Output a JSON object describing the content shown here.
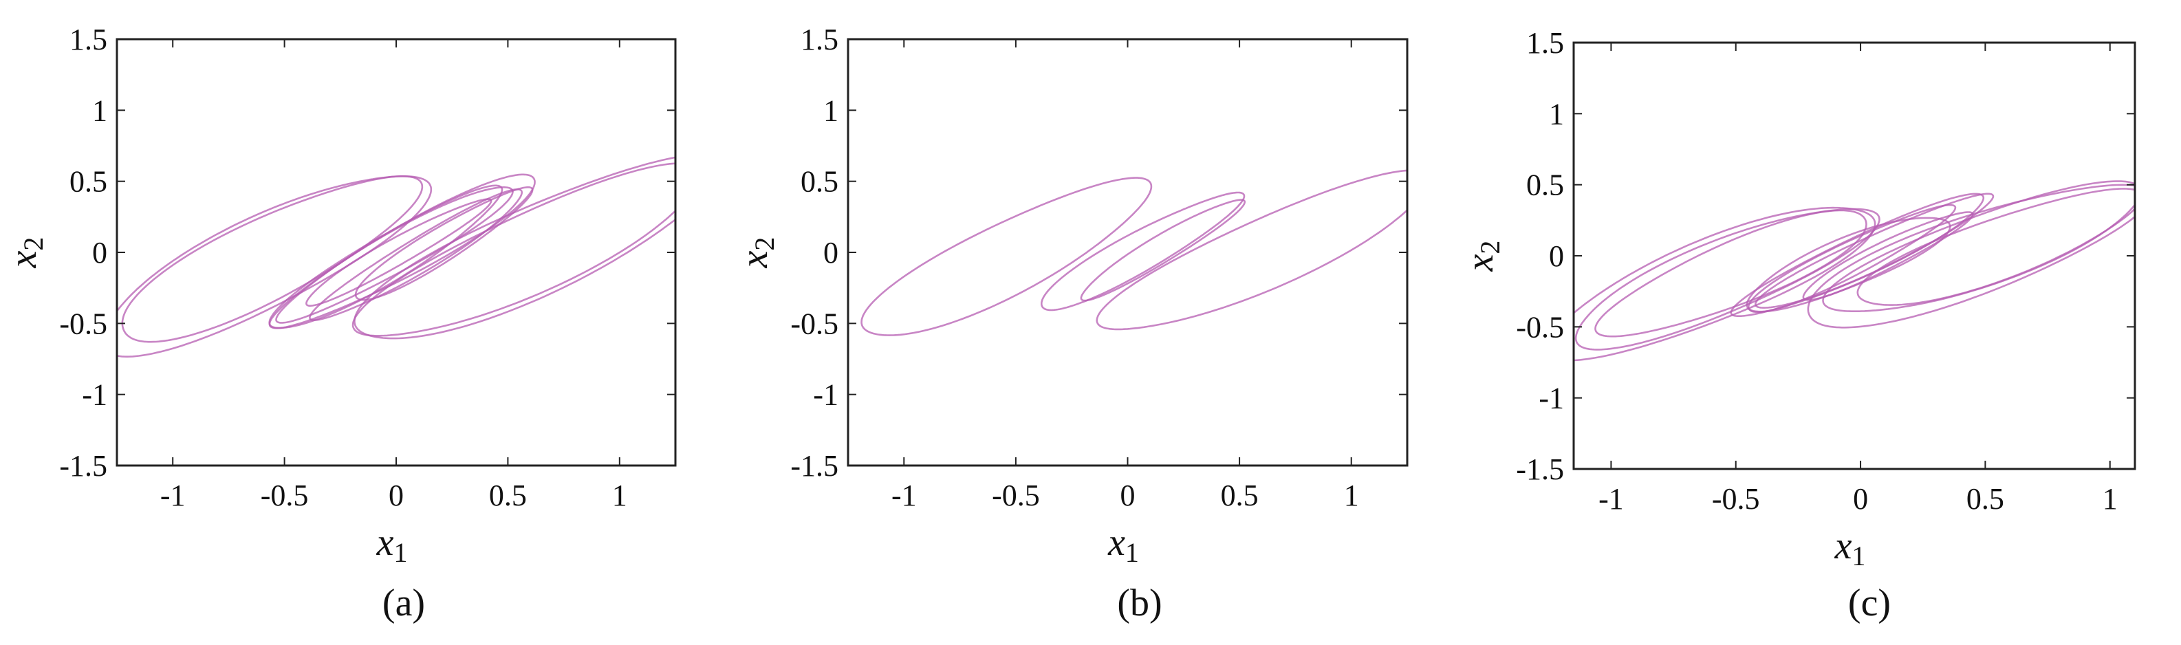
{
  "figure": {
    "colors": {
      "trajectory": "#b65cb1",
      "frame": "#222222"
    }
  },
  "chart_data": [
    {
      "type": "line",
      "caption": "(a)",
      "xlabel": "x1",
      "ylabel": "x2",
      "xlim": [
        -1.25,
        1.25
      ],
      "ylim": [
        -1.5,
        1.5
      ],
      "xticks": [
        "-1",
        "-0.5",
        "0",
        "0.5",
        "1"
      ],
      "yticks": [
        "1.5",
        "1",
        "0.5",
        "0",
        "-0.5",
        "-1",
        "-1.5"
      ],
      "grid": false,
      "series": [
        {
          "loops": [
            {
              "cx": 0.6,
              "cy": 0.0,
              "ang": 37,
              "a": 0.95,
              "b": 0.25,
              "r": 1.0
            },
            {
              "cx": 0.63,
              "cy": 0.02,
              "ang": 37,
              "a": 0.98,
              "b": 0.27,
              "r": 1.03
            },
            {
              "cx": -0.58,
              "cy": -0.05,
              "ang": 40,
              "a": 0.85,
              "b": 0.25,
              "r": 1.0
            },
            {
              "cx": -0.6,
              "cy": -0.08,
              "ang": 40,
              "a": 0.9,
              "b": 0.27,
              "r": 1.03
            },
            {
              "cx": 0.0,
              "cy": 0.0,
              "ang": 42,
              "a": 0.7,
              "b": 0.12,
              "r": 1.0
            },
            {
              "cx": 0.05,
              "cy": 0.02,
              "ang": 42,
              "a": 0.75,
              "b": 0.14,
              "r": 1.05
            },
            {
              "cx": 0.1,
              "cy": -0.02,
              "ang": 44,
              "a": 0.65,
              "b": 0.1,
              "r": 1.0
            },
            {
              "cx": -0.05,
              "cy": -0.05,
              "ang": 44,
              "a": 0.68,
              "b": 0.13,
              "r": 1.04
            },
            {
              "cx": 0.2,
              "cy": 0.05,
              "ang": 45,
              "a": 0.55,
              "b": 0.1,
              "r": 1.0
            },
            {
              "cx": 0.0,
              "cy": 0.0,
              "ang": 42,
              "a": 0.55,
              "b": 0.08,
              "r": 1.0
            }
          ]
        }
      ]
    },
    {
      "type": "line",
      "caption": "(b)",
      "xlabel": "x1",
      "ylabel": "x2",
      "xlim": [
        -1.25,
        1.25
      ],
      "ylim": [
        -1.5,
        1.5
      ],
      "xticks": [
        "-1",
        "-0.5",
        "0",
        "0.5",
        "1"
      ],
      "yticks": [
        "1.5",
        "1",
        "0.5",
        "0",
        "-0.5",
        "-1",
        "-1.5"
      ],
      "grid": false,
      "series": [
        {
          "loops": [
            {
              "cx": 0.62,
              "cy": 0.0,
              "ang": 36,
              "a": 0.9,
              "b": 0.22,
              "r": 1.0
            },
            {
              "cx": -0.55,
              "cy": -0.05,
              "ang": 40,
              "a": 0.82,
              "b": 0.22,
              "r": 1.0
            },
            {
              "cx": 0.05,
              "cy": 0.0,
              "ang": 42,
              "a": 0.6,
              "b": 0.12,
              "r": 1.0
            },
            {
              "cx": 0.15,
              "cy": 0.02,
              "ang": 44,
              "a": 0.5,
              "b": 0.08,
              "r": 1.0
            }
          ]
        }
      ]
    },
    {
      "type": "line",
      "caption": "(c)",
      "xlabel": "x1",
      "ylabel": "x2",
      "xlim": [
        -1.15,
        1.1
      ],
      "ylim": [
        -1.5,
        1.5
      ],
      "xticks": [
        "-1",
        "-0.5",
        "0",
        "0.5",
        "1"
      ],
      "yticks": [
        "1.5",
        "1",
        "0.5",
        "0",
        "-0.5",
        "-1",
        "-1.5"
      ],
      "grid": false,
      "series": [
        {
          "loops": [
            {
              "cx": 0.5,
              "cy": 0.05,
              "ang": 34,
              "a": 0.75,
              "b": 0.22,
              "r": 1.0
            },
            {
              "cx": 0.55,
              "cy": 0.05,
              "ang": 34,
              "a": 0.7,
              "b": 0.2,
              "r": 0.96
            },
            {
              "cx": 0.45,
              "cy": 0.0,
              "ang": 34,
              "a": 0.78,
              "b": 0.24,
              "r": 1.04
            },
            {
              "cx": -0.55,
              "cy": -0.15,
              "ang": 38,
              "a": 0.75,
              "b": 0.22,
              "r": 1.0
            },
            {
              "cx": -0.6,
              "cy": -0.18,
              "ang": 38,
              "a": 0.78,
              "b": 0.24,
              "r": 1.04
            },
            {
              "cx": -0.5,
              "cy": -0.12,
              "ang": 38,
              "a": 0.7,
              "b": 0.2,
              "r": 0.96
            },
            {
              "cx": 0.0,
              "cy": 0.0,
              "ang": 40,
              "a": 0.65,
              "b": 0.12,
              "r": 1.0
            },
            {
              "cx": 0.05,
              "cy": 0.02,
              "ang": 40,
              "a": 0.6,
              "b": 0.1,
              "r": 1.02
            },
            {
              "cx": -0.05,
              "cy": -0.03,
              "ang": 42,
              "a": 0.55,
              "b": 0.1,
              "r": 1.0
            },
            {
              "cx": 0.1,
              "cy": 0.0,
              "ang": 42,
              "a": 0.45,
              "b": 0.08,
              "r": 1.0
            },
            {
              "cx": -0.05,
              "cy": -0.05,
              "ang": 38,
              "a": 0.5,
              "b": 0.15,
              "r": 1.0
            }
          ]
        }
      ]
    }
  ]
}
